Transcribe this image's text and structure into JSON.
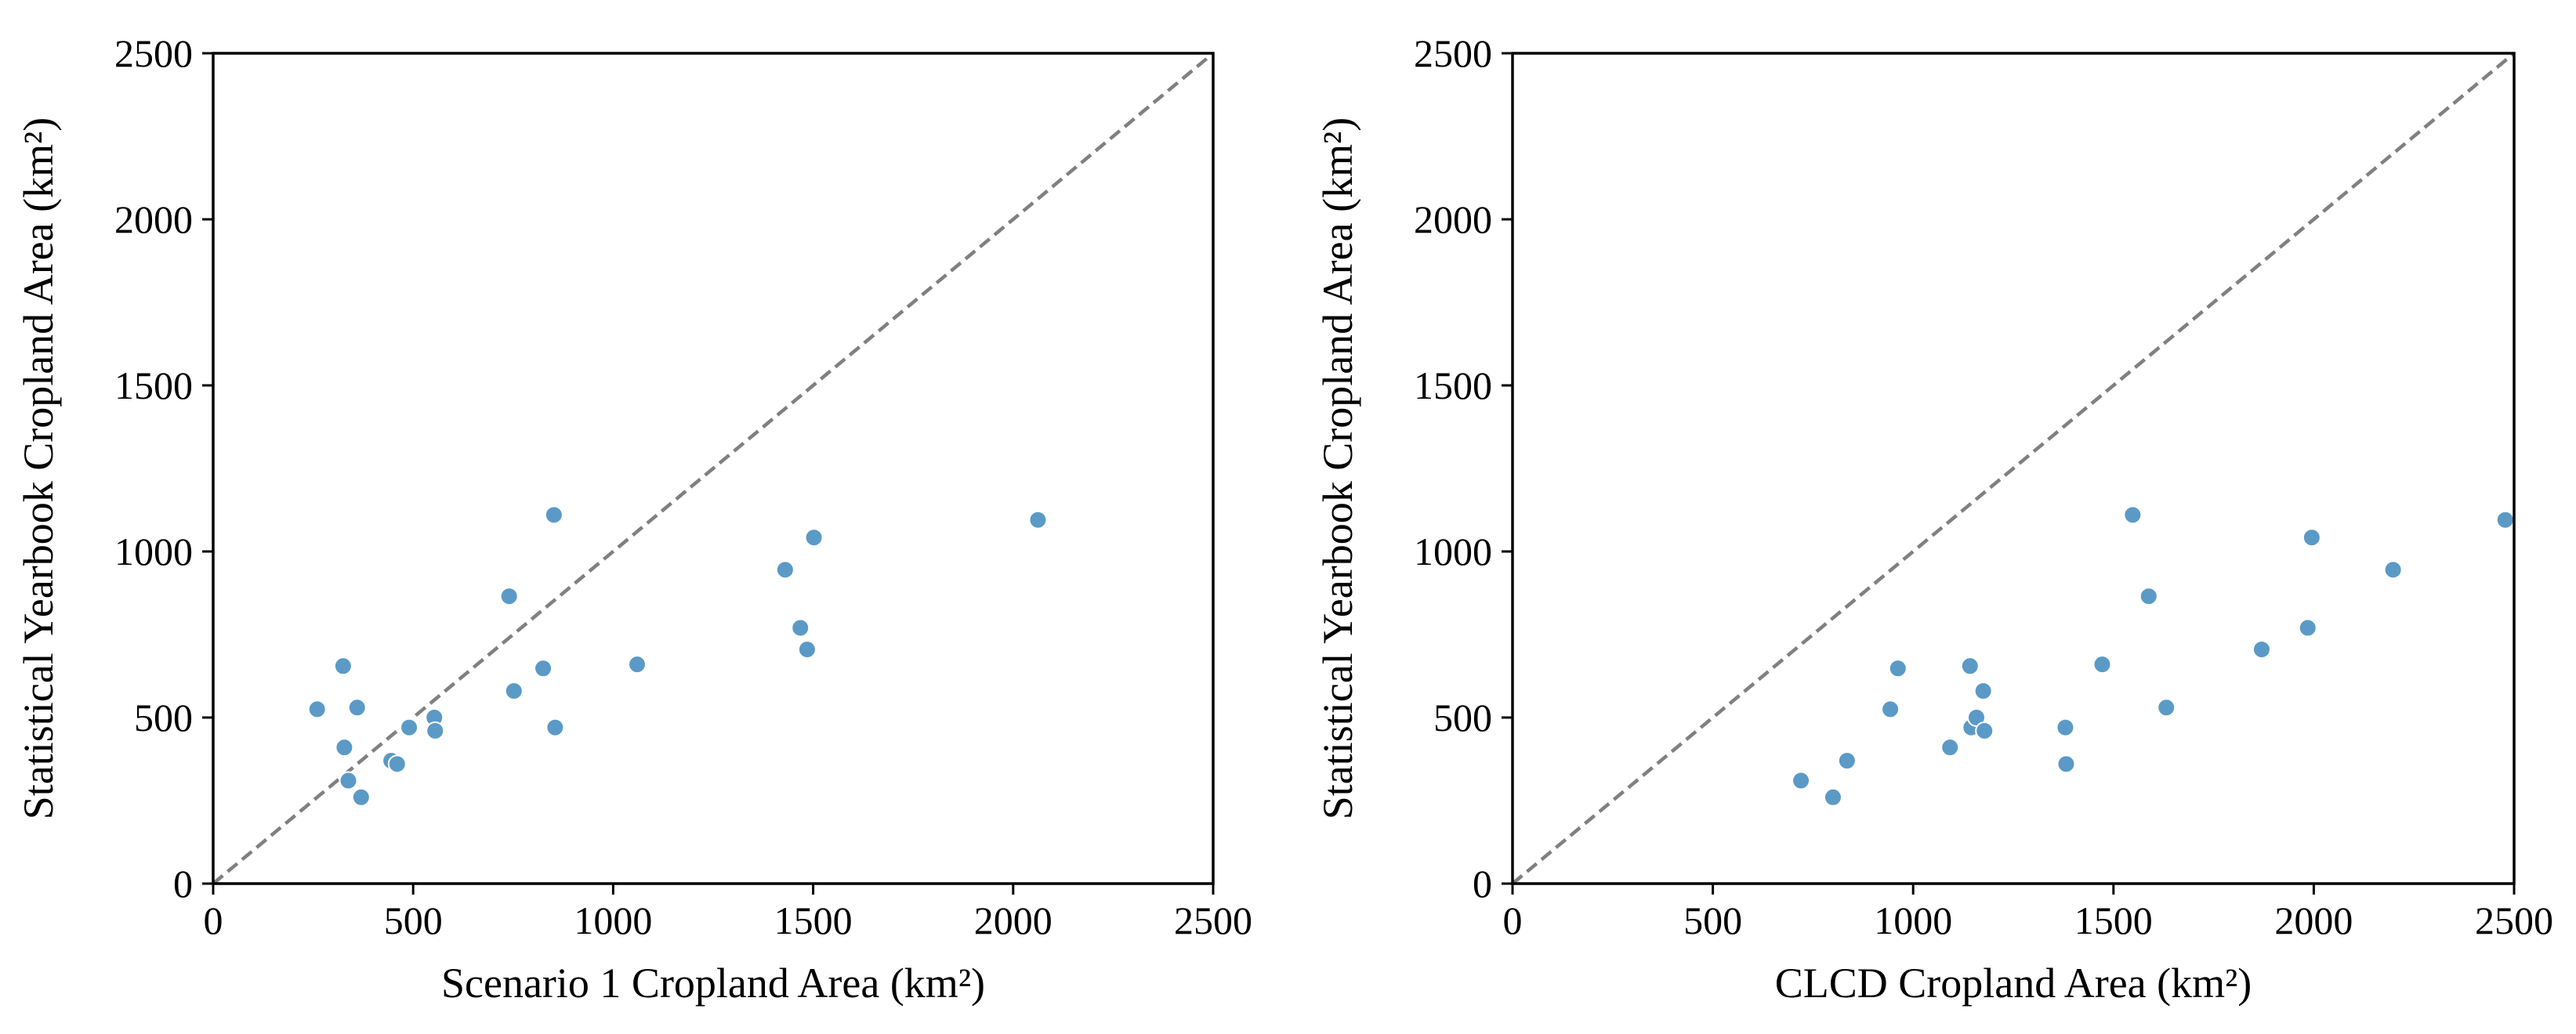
{
  "chart_data": [
    {
      "type": "scatter",
      "xlabel": "Scenario 1 Cropland Area (km²)",
      "ylabel": "Statistical Yearbook Cropland Area (km²)",
      "xlim": [
        0,
        2500
      ],
      "ylim": [
        0,
        2500
      ],
      "xticks": [
        "0",
        "500",
        "1000",
        "1500",
        "2000",
        "2500"
      ],
      "yticks": [
        "0",
        "500",
        "1000",
        "1500",
        "2000",
        "2500"
      ],
      "grid": false,
      "reference_line": {
        "style": "dashed",
        "color": "#808080",
        "from": [
          0,
          0
        ],
        "to": [
          2500,
          2500
        ]
      },
      "marker_color": "#5b9ac6",
      "points": [
        {
          "x": 260,
          "y": 525
        },
        {
          "x": 325,
          "y": 655
        },
        {
          "x": 328,
          "y": 410
        },
        {
          "x": 338,
          "y": 310
        },
        {
          "x": 360,
          "y": 530
        },
        {
          "x": 370,
          "y": 260
        },
        {
          "x": 445,
          "y": 370
        },
        {
          "x": 460,
          "y": 360
        },
        {
          "x": 490,
          "y": 470
        },
        {
          "x": 553,
          "y": 500
        },
        {
          "x": 555,
          "y": 460
        },
        {
          "x": 740,
          "y": 865
        },
        {
          "x": 752,
          "y": 580
        },
        {
          "x": 825,
          "y": 648
        },
        {
          "x": 852,
          "y": 1110
        },
        {
          "x": 855,
          "y": 470
        },
        {
          "x": 1060,
          "y": 660
        },
        {
          "x": 1430,
          "y": 945
        },
        {
          "x": 1468,
          "y": 770
        },
        {
          "x": 1485,
          "y": 705
        },
        {
          "x": 1502,
          "y": 1042
        },
        {
          "x": 2062,
          "y": 1095
        }
      ]
    },
    {
      "type": "scatter",
      "xlabel": "CLCD Cropland Area (km²)",
      "ylabel": "Statistical Yearbook Cropland Area (km²)",
      "xlim": [
        0,
        2500
      ],
      "ylim": [
        0,
        2500
      ],
      "xticks": [
        "0",
        "500",
        "1000",
        "1500",
        "2000",
        "2500"
      ],
      "yticks": [
        "0",
        "500",
        "1000",
        "1500",
        "2000",
        "2500"
      ],
      "grid": false,
      "reference_line": {
        "style": "dashed",
        "color": "#808080",
        "from": [
          0,
          0
        ],
        "to": [
          2500,
          2500
        ]
      },
      "marker_color": "#5b9ac6",
      "points": [
        {
          "x": 720,
          "y": 310
        },
        {
          "x": 800,
          "y": 260
        },
        {
          "x": 835,
          "y": 370
        },
        {
          "x": 943,
          "y": 525
        },
        {
          "x": 962,
          "y": 648
        },
        {
          "x": 1092,
          "y": 410
        },
        {
          "x": 1142,
          "y": 655
        },
        {
          "x": 1145,
          "y": 470
        },
        {
          "x": 1158,
          "y": 500
        },
        {
          "x": 1175,
          "y": 580
        },
        {
          "x": 1178,
          "y": 460
        },
        {
          "x": 1380,
          "y": 470
        },
        {
          "x": 1382,
          "y": 360
        },
        {
          "x": 1472,
          "y": 660
        },
        {
          "x": 1548,
          "y": 1110
        },
        {
          "x": 1588,
          "y": 865
        },
        {
          "x": 1632,
          "y": 530
        },
        {
          "x": 1870,
          "y": 705
        },
        {
          "x": 1985,
          "y": 770
        },
        {
          "x": 1995,
          "y": 1042
        },
        {
          "x": 2198,
          "y": 945
        },
        {
          "x": 2478,
          "y": 1095
        }
      ]
    }
  ]
}
